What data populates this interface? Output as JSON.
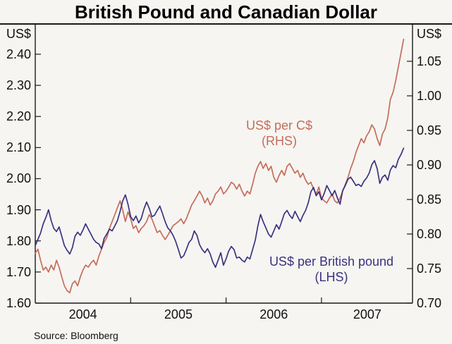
{
  "title": "British Pound and Canadian Dollar",
  "source": "Source: Bloomberg",
  "colors": {
    "background": "#f6f5f2",
    "axis": "#1a1a1a",
    "cad_line": "#c56d59",
    "gbp_line": "#39337f"
  },
  "chart_data": {
    "type": "line",
    "title": "British Pound and Canadian Dollar",
    "grid": false,
    "legend_position": "inline-annotations",
    "left_axis": {
      "unit": "US$",
      "range": [
        1.6,
        2.495
      ],
      "ticks": [
        2.4,
        2.3,
        2.2,
        2.1,
        2.0,
        1.9,
        1.8,
        1.7,
        1.6
      ]
    },
    "right_axis": {
      "unit": "US$",
      "range": [
        0.7,
        1.103
      ],
      "ticks": [
        1.05,
        1.0,
        0.95,
        0.9,
        0.85,
        0.8,
        0.75,
        0.7
      ]
    },
    "x_axis": {
      "range": [
        2004.0,
        2007.954
      ],
      "year_ticks": [
        2005,
        2006,
        2007
      ],
      "year_labels": [
        "2004",
        "2005",
        "2006",
        "2007"
      ],
      "year_label_positions": [
        2004.5,
        2005.5,
        2006.5,
        2007.48
      ]
    },
    "series": [
      {
        "name": "US$ per C$",
        "axis": "rhs",
        "annotation": [
          "US$ per C$",
          "(RHS)"
        ],
        "color": "#c56d59",
        "t_start": 2004.0,
        "t_step_years": 0.027778,
        "values": [
          0.772,
          0.778,
          0.762,
          0.748,
          0.752,
          0.745,
          0.755,
          0.748,
          0.762,
          0.752,
          0.738,
          0.725,
          0.718,
          0.715,
          0.728,
          0.732,
          0.725,
          0.738,
          0.748,
          0.755,
          0.752,
          0.758,
          0.762,
          0.755,
          0.768,
          0.778,
          0.788,
          0.795,
          0.808,
          0.818,
          0.828,
          0.838,
          0.848,
          0.835,
          0.818,
          0.832,
          0.822,
          0.808,
          0.812,
          0.802,
          0.808,
          0.812,
          0.818,
          0.828,
          0.822,
          0.812,
          0.802,
          0.805,
          0.798,
          0.792,
          0.798,
          0.805,
          0.812,
          0.815,
          0.818,
          0.822,
          0.815,
          0.822,
          0.832,
          0.842,
          0.848,
          0.855,
          0.862,
          0.855,
          0.845,
          0.852,
          0.842,
          0.848,
          0.858,
          0.862,
          0.868,
          0.858,
          0.862,
          0.868,
          0.875,
          0.872,
          0.865,
          0.872,
          0.862,
          0.855,
          0.862,
          0.858,
          0.872,
          0.888,
          0.898,
          0.905,
          0.895,
          0.902,
          0.892,
          0.898,
          0.882,
          0.875,
          0.885,
          0.892,
          0.885,
          0.898,
          0.902,
          0.895,
          0.888,
          0.892,
          0.882,
          0.888,
          0.878,
          0.872,
          0.875,
          0.865,
          0.858,
          0.868,
          0.852,
          0.848,
          0.845,
          0.852,
          0.858,
          0.848,
          0.845,
          0.852,
          0.862,
          0.872,
          0.882,
          0.895,
          0.905,
          0.918,
          0.928,
          0.938,
          0.932,
          0.942,
          0.948,
          0.958,
          0.952,
          0.938,
          0.928,
          0.945,
          0.952,
          0.968,
          0.995,
          1.005,
          1.022,
          1.042,
          1.062,
          1.082
        ]
      },
      {
        "name": "US$ per British pound",
        "axis": "lhs",
        "annotation": [
          "US$ per British pound",
          "(LHS)"
        ],
        "color": "#39337f",
        "t_start": 2004.0,
        "t_step_years": 0.027778,
        "values": [
          1.785,
          1.805,
          1.825,
          1.855,
          1.875,
          1.9,
          1.865,
          1.84,
          1.83,
          1.845,
          1.815,
          1.785,
          1.77,
          1.758,
          1.778,
          1.815,
          1.828,
          1.818,
          1.835,
          1.855,
          1.838,
          1.822,
          1.805,
          1.795,
          1.79,
          1.775,
          1.808,
          1.822,
          1.838,
          1.832,
          1.848,
          1.865,
          1.895,
          1.928,
          1.948,
          1.918,
          1.878,
          1.865,
          1.88,
          1.858,
          1.872,
          1.902,
          1.925,
          1.905,
          1.878,
          1.882,
          1.898,
          1.912,
          1.888,
          1.862,
          1.842,
          1.832,
          1.818,
          1.798,
          1.772,
          1.745,
          1.752,
          1.772,
          1.795,
          1.805,
          1.832,
          1.818,
          1.788,
          1.772,
          1.762,
          1.775,
          1.758,
          1.732,
          1.715,
          1.738,
          1.762,
          1.722,
          1.742,
          1.768,
          1.782,
          1.772,
          1.745,
          1.748,
          1.738,
          1.732,
          1.748,
          1.742,
          1.772,
          1.802,
          1.848,
          1.885,
          1.862,
          1.842,
          1.822,
          1.812,
          1.832,
          1.852,
          1.838,
          1.862,
          1.888,
          1.898,
          1.882,
          1.872,
          1.895,
          1.878,
          1.862,
          1.882,
          1.898,
          1.922,
          1.958,
          1.972,
          1.945,
          1.958,
          1.932,
          1.952,
          1.978,
          1.962,
          1.945,
          1.962,
          1.938,
          1.918,
          1.962,
          1.978,
          1.998,
          2.005,
          1.992,
          1.978,
          1.982,
          1.975,
          1.992,
          2.002,
          2.018,
          2.045,
          2.058,
          2.032,
          1.985,
          2.005,
          2.012,
          1.995,
          2.028,
          2.042,
          2.035,
          2.062,
          2.078,
          2.098
        ]
      }
    ]
  }
}
